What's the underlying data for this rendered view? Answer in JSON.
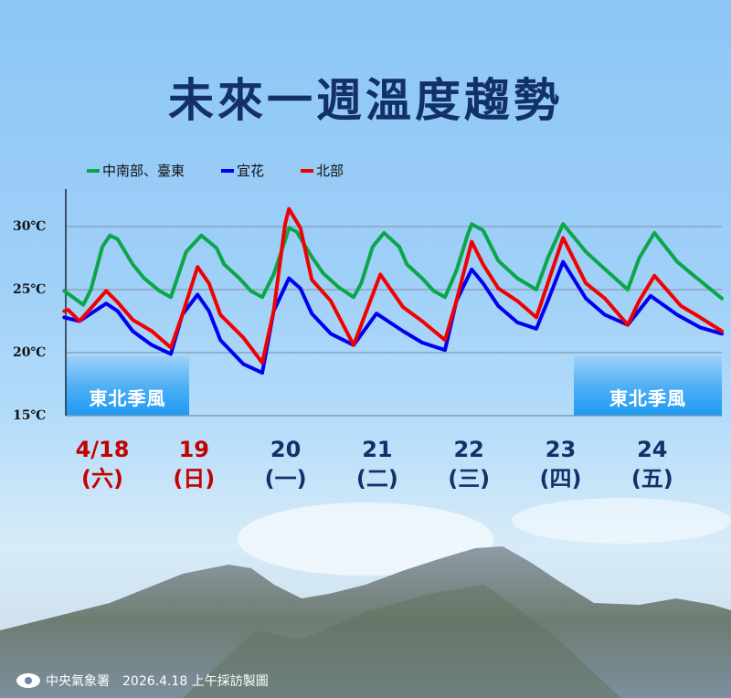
{
  "title": "未來一週溫度趨勢",
  "annotations": {
    "monsoon_left": "東北季風",
    "monsoon_right": "東北季風"
  },
  "footer": {
    "agency": "中央氣象署",
    "note": "2026.4.18 上午採訪製圖"
  },
  "icons": {
    "agency_logo": "cwa-logo-icon"
  },
  "chart_data": {
    "type": "line",
    "title": "",
    "xlabel": "",
    "ylabel": "",
    "ylim": [
      15,
      33
    ],
    "yticks": [
      15,
      20,
      25,
      30
    ],
    "ytick_labels": [
      "15℃",
      "20℃",
      "25℃",
      "30℃"
    ],
    "grid": true,
    "legend": "top",
    "days": [
      {
        "date": "4/18",
        "weekday": "(六)",
        "weekend": true
      },
      {
        "date": "19",
        "weekday": "(日)",
        "weekend": true
      },
      {
        "date": "20",
        "weekday": "(一)",
        "weekend": false
      },
      {
        "date": "21",
        "weekday": "(二)",
        "weekend": false
      },
      {
        "date": "22",
        "weekday": "(三)",
        "weekend": false
      },
      {
        "date": "23",
        "weekday": "(四)",
        "weekend": false
      },
      {
        "date": "24",
        "weekday": "(五)",
        "weekend": false
      }
    ],
    "colors": {
      "weekend": "#c40000",
      "weekday": "#13306a"
    },
    "series": [
      {
        "name": "中南部、臺東",
        "color": "#0ba64a",
        "points": [
          [
            "4/18 02:00",
            24.9
          ],
          [
            "4/18 07:00",
            23.8
          ],
          [
            "4/18 09:00",
            25.0
          ],
          [
            "4/18 12:00",
            28.4
          ],
          [
            "4/18 14:00",
            29.3
          ],
          [
            "4/18 16:00",
            29.0
          ],
          [
            "4/18 20:00",
            27.0
          ],
          [
            "4/18 23:00",
            25.9
          ],
          [
            "4/19 03:00",
            24.9
          ],
          [
            "4/19 06:00",
            24.4
          ],
          [
            "4/19 10:00",
            28.0
          ],
          [
            "4/19 14:00",
            29.3
          ],
          [
            "4/19 18:00",
            28.3
          ],
          [
            "4/19 20:00",
            27.0
          ],
          [
            "4/20 00:00",
            25.9
          ],
          [
            "4/20 03:00",
            24.9
          ],
          [
            "4/20 06:00",
            24.4
          ],
          [
            "4/20 09:00",
            26.2
          ],
          [
            "4/20 12:00",
            28.9
          ],
          [
            "4/20 13:00",
            29.9
          ],
          [
            "4/20 15:00",
            29.6
          ],
          [
            "4/20 19:00",
            27.6
          ],
          [
            "4/20 22:00",
            26.3
          ],
          [
            "4/21 02:00",
            25.2
          ],
          [
            "4/21 06:00",
            24.4
          ],
          [
            "4/21 08:00",
            25.5
          ],
          [
            "4/21 11:00",
            28.4
          ],
          [
            "4/21 14:00",
            29.5
          ],
          [
            "4/21 18:00",
            28.4
          ],
          [
            "4/21 20:00",
            27.0
          ],
          [
            "4/22 00:00",
            25.9
          ],
          [
            "4/22 03:00",
            24.9
          ],
          [
            "4/22 06:00",
            24.4
          ],
          [
            "4/22 09:00",
            26.5
          ],
          [
            "4/22 12:00",
            29.4
          ],
          [
            "4/22 13:00",
            30.2
          ],
          [
            "4/22 16:00",
            29.7
          ],
          [
            "4/22 20:00",
            27.3
          ],
          [
            "4/23 01:00",
            25.9
          ],
          [
            "4/23 06:00",
            25.0
          ],
          [
            "4/23 09:00",
            27.5
          ],
          [
            "4/23 13:00",
            30.2
          ],
          [
            "4/23 19:00",
            28.0
          ],
          [
            "4/23 23:00",
            26.9
          ],
          [
            "4/24 06:00",
            25.0
          ],
          [
            "4/24 09:00",
            27.5
          ],
          [
            "4/24 13:00",
            29.5
          ],
          [
            "4/24 19:00",
            27.2
          ],
          [
            "4/24 23:00",
            26.2
          ],
          [
            "4/25 07:00",
            24.3
          ]
        ]
      },
      {
        "name": "宜花",
        "color": "#0000f0",
        "points": [
          [
            "4/18 02:00",
            22.8
          ],
          [
            "4/18 06:00",
            22.5
          ],
          [
            "4/18 13:00",
            23.9
          ],
          [
            "4/18 16:00",
            23.3
          ],
          [
            "4/18 20:00",
            21.7
          ],
          [
            "4/19 01:00",
            20.6
          ],
          [
            "4/19 06:00",
            19.9
          ],
          [
            "4/19 09:00",
            23.0
          ],
          [
            "4/19 13:00",
            24.6
          ],
          [
            "4/19 16:00",
            23.3
          ],
          [
            "4/19 19:00",
            21.0
          ],
          [
            "4/20 01:00",
            19.1
          ],
          [
            "4/20 06:00",
            18.4
          ],
          [
            "4/20 09:00",
            23.3
          ],
          [
            "4/20 13:00",
            25.9
          ],
          [
            "4/20 16:00",
            25.1
          ],
          [
            "4/20 19:00",
            23.1
          ],
          [
            "4/21 00:00",
            21.5
          ],
          [
            "4/21 06:00",
            20.6
          ],
          [
            "4/21 12:00",
            23.1
          ],
          [
            "4/21 19:00",
            21.7
          ],
          [
            "4/22 00:00",
            20.8
          ],
          [
            "4/22 06:00",
            20.2
          ],
          [
            "4/22 09:00",
            24.1
          ],
          [
            "4/22 13:00",
            26.6
          ],
          [
            "4/22 16:00",
            25.5
          ],
          [
            "4/22 20:00",
            23.7
          ],
          [
            "4/23 01:00",
            22.4
          ],
          [
            "4/23 06:00",
            21.9
          ],
          [
            "4/23 09:00",
            24.1
          ],
          [
            "4/23 13:00",
            27.2
          ],
          [
            "4/23 19:00",
            24.3
          ],
          [
            "4/24 00:00",
            23.0
          ],
          [
            "4/24 06:00",
            22.2
          ],
          [
            "4/24 12:00",
            24.5
          ],
          [
            "4/24 19:00",
            23.0
          ],
          [
            "4/25 01:00",
            22.0
          ],
          [
            "4/25 07:00",
            21.5
          ]
        ]
      },
      {
        "name": "北部",
        "color": "#f00000",
        "points": [
          [
            "4/18 02:00",
            23.3
          ],
          [
            "4/18 03:00",
            23.4
          ],
          [
            "4/18 06:00",
            22.5
          ],
          [
            "4/18 13:00",
            24.9
          ],
          [
            "4/18 16:00",
            24.0
          ],
          [
            "4/18 20:00",
            22.6
          ],
          [
            "4/19 01:00",
            21.7
          ],
          [
            "4/19 06:00",
            20.4
          ],
          [
            "4/19 09:00",
            23.0
          ],
          [
            "4/19 13:00",
            26.8
          ],
          [
            "4/19 16:00",
            25.5
          ],
          [
            "4/19 19:00",
            23.0
          ],
          [
            "4/20 01:00",
            21.2
          ],
          [
            "4/20 06:00",
            19.2
          ],
          [
            "4/20 09:00",
            23.3
          ],
          [
            "4/20 12:00",
            30.2
          ],
          [
            "4/20 13:00",
            31.4
          ],
          [
            "4/20 16:00",
            29.9
          ],
          [
            "4/20 19:00",
            25.8
          ],
          [
            "4/21 00:00",
            24.1
          ],
          [
            "4/21 06:00",
            20.6
          ],
          [
            "4/21 13:00",
            26.2
          ],
          [
            "4/21 19:00",
            23.6
          ],
          [
            "4/22 00:00",
            22.5
          ],
          [
            "4/22 06:00",
            21.0
          ],
          [
            "4/22 09:00",
            24.1
          ],
          [
            "4/22 13:00",
            28.8
          ],
          [
            "4/22 16:00",
            27.0
          ],
          [
            "4/22 20:00",
            25.1
          ],
          [
            "4/23 01:00",
            24.1
          ],
          [
            "4/23 06:00",
            22.8
          ],
          [
            "4/23 09:00",
            25.5
          ],
          [
            "4/23 13:00",
            29.1
          ],
          [
            "4/23 19:00",
            25.5
          ],
          [
            "4/24 00:00",
            24.3
          ],
          [
            "4/24 06:00",
            22.2
          ],
          [
            "4/24 09:00",
            24.1
          ],
          [
            "4/24 13:00",
            26.1
          ],
          [
            "4/24 20:00",
            23.7
          ],
          [
            "4/25 01:00",
            22.8
          ],
          [
            "4/25 07:00",
            21.7
          ]
        ]
      }
    ]
  }
}
